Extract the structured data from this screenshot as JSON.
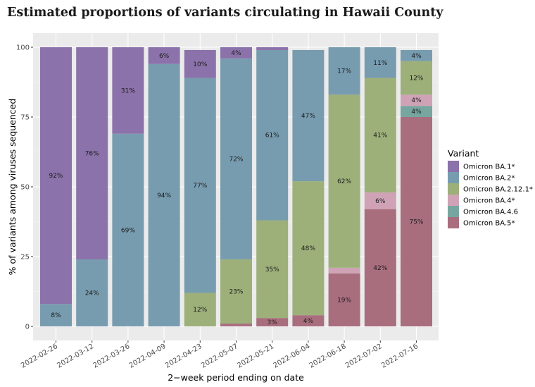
{
  "chart_data": {
    "type": "bar",
    "stacked": true,
    "title": "Estimated proportions of variants circulating in Hawaii County",
    "xlabel": "2−week period ending on date",
    "ylabel": "% of variants among viruses sequenced",
    "ylim": [
      0,
      100
    ],
    "yticks": [
      "0",
      "25",
      "50",
      "75",
      "100"
    ],
    "categories": [
      "2022-02-26",
      "2022-03-12",
      "2022-03-26",
      "2022-04-09",
      "2022-04-23",
      "2022-05-07",
      "2022-05-21",
      "2022-06-04",
      "2022-06-18",
      "2022-07-02",
      "2022-07-16"
    ],
    "legend_title": "Variant",
    "legend_position": "right",
    "series": [
      {
        "name": "Omicron BA.5*",
        "color": "#a96e7e",
        "values": [
          0,
          0,
          0,
          0,
          0,
          1,
          3,
          4,
          19,
          42,
          75
        ],
        "labels": [
          "",
          "",
          "",
          "",
          "",
          "",
          "3%",
          "4%",
          "19%",
          "42%",
          "75%"
        ]
      },
      {
        "name": "Omicron BA.4.6",
        "color": "#77a6a0",
        "values": [
          0,
          0,
          0,
          0,
          0,
          0,
          0,
          0,
          0,
          0,
          4
        ],
        "labels": [
          "",
          "",
          "",
          "",
          "",
          "",
          "",
          "",
          "",
          "",
          "4%"
        ]
      },
      {
        "name": "Omicron BA.4*",
        "color": "#cfa3b5",
        "values": [
          0,
          0,
          0,
          0,
          0,
          0,
          0,
          0,
          2,
          6,
          4
        ],
        "labels": [
          "",
          "",
          "",
          "",
          "",
          "",
          "",
          "",
          "",
          "6%",
          "4%"
        ]
      },
      {
        "name": "Omicron BA.2.12.1*",
        "color": "#9db07a",
        "values": [
          0,
          0,
          0,
          0,
          12,
          23,
          35,
          48,
          62,
          41,
          12
        ],
        "labels": [
          "",
          "",
          "",
          "",
          "12%",
          "23%",
          "35%",
          "48%",
          "62%",
          "41%",
          "12%"
        ]
      },
      {
        "name": "Omicron BA.2*",
        "color": "#789caf",
        "values": [
          8,
          24,
          69,
          94,
          77,
          72,
          61,
          47,
          17,
          11,
          4
        ],
        "labels": [
          "8%",
          "24%",
          "69%",
          "94%",
          "77%",
          "72%",
          "61%",
          "47%",
          "17%",
          "11%",
          "4%"
        ]
      },
      {
        "name": "Omicron BA.1*",
        "color": "#8b72aa",
        "values": [
          92,
          76,
          31,
          6,
          10,
          4,
          1,
          0,
          0,
          0,
          0
        ],
        "labels": [
          "92%",
          "76%",
          "31%",
          "6%",
          "10%",
          "4%",
          "",
          "",
          "",
          "",
          ""
        ]
      }
    ],
    "legend_order": [
      "Omicron BA.1*",
      "Omicron BA.2*",
      "Omicron BA.2.12.1*",
      "Omicron BA.4*",
      "Omicron BA.4.6",
      "Omicron BA.5*"
    ]
  }
}
